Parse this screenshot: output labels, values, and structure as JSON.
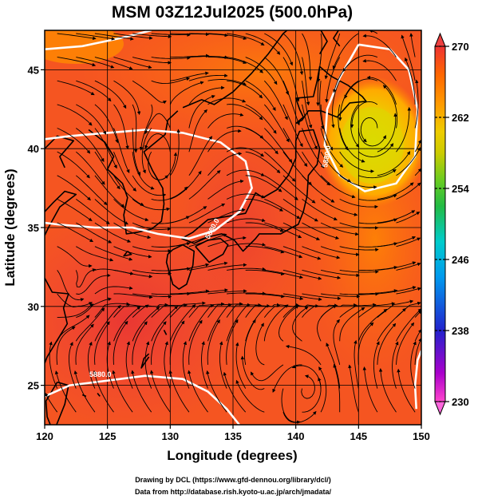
{
  "title": "MSM 03Z12Jul2025 (500.0hPa)",
  "xlabel": "Longitude (degrees)",
  "ylabel": "Latitude  (degrees)",
  "credits": {
    "line1": "Drawing by DCL (https://www.gfd-dennou.org/library/dcl/)",
    "line2": "Data from http://database.rish.kyoto-u.ac.jp/arch/jmadata/"
  },
  "colorbar": {
    "min": 230,
    "max": 270,
    "ticks": [
      "270",
      "262",
      "254",
      "246",
      "238",
      "230"
    ],
    "colors": [
      "#ff44cc",
      "#aa00cc",
      "#2222cc",
      "#0099ee",
      "#00cccc",
      "#22bb44",
      "#66cc22",
      "#cccc00",
      "#eecc00",
      "#ff9900",
      "#ff6600",
      "#ff4422",
      "#ee3333"
    ]
  },
  "contour_labels": [
    "5880.0",
    "5880.0",
    "5880.0",
    "5880.0"
  ],
  "chart_data": {
    "type": "heatmap",
    "title": "MSM 03Z12Jul2025 (500.0hPa)",
    "xlabel": "Longitude (degrees)",
    "ylabel": "Latitude  (degrees)",
    "xlim": [
      120,
      150
    ],
    "ylim": [
      22.5,
      47.5
    ],
    "xticks": [
      120,
      125,
      130,
      135,
      140,
      145,
      150
    ],
    "yticks": [
      25,
      30,
      35,
      40,
      45
    ],
    "colorbar_range": [
      230,
      270
    ],
    "grid": true,
    "features": {
      "cold_low_center": [
        146,
        41
      ],
      "cyclonic_circulations": [
        [
          122.5,
          31
        ],
        [
          141,
          24.8
        ],
        [
          129,
          38.5
        ]
      ],
      "contour_5880": [
        [
          [
            120,
            46.3
          ],
          [
            123,
            46.5
          ],
          [
            126,
            47
          ],
          [
            128.5,
            47.5
          ]
        ],
        [
          [
            120,
            40.6
          ],
          [
            122,
            40.8
          ],
          [
            125,
            41
          ],
          [
            128,
            41.2
          ],
          [
            131,
            41
          ],
          [
            134,
            40.4
          ],
          [
            136,
            39.2
          ],
          [
            136.5,
            37.5
          ],
          [
            135.5,
            36
          ],
          [
            133.5,
            34.8
          ],
          [
            131.5,
            34.3
          ],
          [
            129,
            34.6
          ],
          [
            127,
            35
          ],
          [
            124,
            35
          ],
          [
            121,
            35.2
          ],
          [
            120,
            35.3
          ]
        ],
        [
          [
            145,
            46.6
          ],
          [
            147.5,
            46.3
          ],
          [
            149,
            45
          ],
          [
            149.7,
            42.5
          ],
          [
            149.5,
            39.5
          ],
          [
            148,
            37.8
          ],
          [
            145.5,
            37.3
          ],
          [
            143.5,
            38.3
          ],
          [
            142.3,
            40.2
          ],
          [
            142.5,
            42.5
          ],
          [
            143.5,
            44.5
          ],
          [
            145,
            46.6
          ]
        ],
        [
          [
            120,
            24.3
          ],
          [
            122,
            25
          ],
          [
            125,
            25.3
          ],
          [
            128,
            25.6
          ],
          [
            131,
            25.4
          ],
          [
            133,
            24.6
          ],
          [
            134.5,
            23.5
          ],
          [
            135.5,
            22.5
          ]
        ],
        [
          [
            150,
            27.2
          ],
          [
            149.7,
            26.6
          ],
          [
            149.5,
            25
          ],
          [
            149.6,
            23.5
          ]
        ]
      ]
    }
  }
}
